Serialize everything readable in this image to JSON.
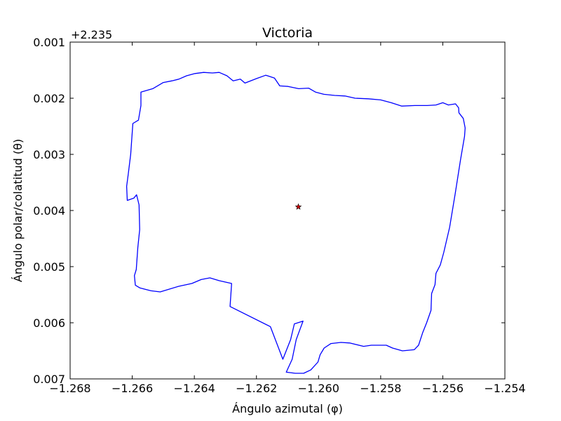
{
  "chart_data": {
    "type": "line",
    "title": "Victoria",
    "xlabel": "Ángulo azimutal (φ)",
    "ylabel": "Ángulo polar/colatitud (θ)",
    "y_offset_label": "+2.235",
    "xlim": [
      -1.268,
      -1.254
    ],
    "ylim": [
      0.001,
      0.007
    ],
    "y_inverted": true,
    "x_ticks": [
      "−1.268",
      "−1.266",
      "−1.264",
      "−1.262",
      "−1.260",
      "−1.258",
      "−1.256",
      "−1.254"
    ],
    "y_ticks": [
      "0.001",
      "0.002",
      "0.003",
      "0.004",
      "0.005",
      "0.006",
      "0.007"
    ],
    "grid": false,
    "series": [
      {
        "color": "#0000ff",
        "closed": true,
        "points": [
          [
            -1.26572,
            0.00189
          ],
          [
            -1.26534,
            0.00183
          ],
          [
            -1.265,
            0.00172
          ],
          [
            -1.26472,
            0.00169
          ],
          [
            -1.2645,
            0.00166
          ],
          [
            -1.26425,
            0.0016
          ],
          [
            -1.26398,
            0.00156
          ],
          [
            -1.2637,
            0.00154
          ],
          [
            -1.26342,
            0.00155
          ],
          [
            -1.2632,
            0.00154
          ],
          [
            -1.26295,
            0.0016
          ],
          [
            -1.26275,
            0.00169
          ],
          [
            -1.26252,
            0.00166
          ],
          [
            -1.26237,
            0.00173
          ],
          [
            -1.262,
            0.00165
          ],
          [
            -1.2617,
            0.00159
          ],
          [
            -1.26142,
            0.00164
          ],
          [
            -1.26125,
            0.00178
          ],
          [
            -1.26098,
            0.00179
          ],
          [
            -1.26064,
            0.00183
          ],
          [
            -1.26032,
            0.00182
          ],
          [
            -1.2601,
            0.00189
          ],
          [
            -1.25983,
            0.00193
          ],
          [
            -1.25948,
            0.00195
          ],
          [
            -1.25915,
            0.00196
          ],
          [
            -1.25882,
            0.002
          ],
          [
            -1.2584,
            0.00201
          ],
          [
            -1.258,
            0.00203
          ],
          [
            -1.25766,
            0.00208
          ],
          [
            -1.25732,
            0.00214
          ],
          [
            -1.2569,
            0.00213
          ],
          [
            -1.2565,
            0.00213
          ],
          [
            -1.25622,
            0.00212
          ],
          [
            -1.256,
            0.00208
          ],
          [
            -1.25582,
            0.00212
          ],
          [
            -1.25559,
            0.0021
          ],
          [
            -1.25549,
            0.00217
          ],
          [
            -1.25548,
            0.00226
          ],
          [
            -1.25534,
            0.00236
          ],
          [
            -1.25528,
            0.00253
          ],
          [
            -1.2553,
            0.00268
          ],
          [
            -1.25543,
            0.0031
          ],
          [
            -1.2556,
            0.0037
          ],
          [
            -1.25578,
            0.0043
          ],
          [
            -1.25597,
            0.00475
          ],
          [
            -1.25608,
            0.00497
          ],
          [
            -1.25622,
            0.00512
          ],
          [
            -1.25625,
            0.00532
          ],
          [
            -1.25636,
            0.00548
          ],
          [
            -1.25638,
            0.00578
          ],
          [
            -1.25652,
            0.006
          ],
          [
            -1.25665,
            0.00618
          ],
          [
            -1.25678,
            0.0064
          ],
          [
            -1.25692,
            0.00648
          ],
          [
            -1.2573,
            0.0065
          ],
          [
            -1.25762,
            0.00645
          ],
          [
            -1.25782,
            0.0064
          ],
          [
            -1.2583,
            0.0064
          ],
          [
            -1.25855,
            0.00642
          ],
          [
            -1.259,
            0.00636
          ],
          [
            -1.25928,
            0.00635
          ],
          [
            -1.2596,
            0.00637
          ],
          [
            -1.25982,
            0.00645
          ],
          [
            -1.25995,
            0.00657
          ],
          [
            -1.26002,
            0.0067
          ],
          [
            -1.26025,
            0.00684
          ],
          [
            -1.26048,
            0.0069
          ],
          [
            -1.26075,
            0.0069
          ],
          [
            -1.26104,
            0.00688
          ],
          [
            -1.26085,
            0.00665
          ],
          [
            -1.26072,
            0.0063
          ],
          [
            -1.26058,
            0.00609
          ],
          [
            -1.2605,
            0.00597
          ],
          [
            -1.26078,
            0.00602
          ],
          [
            -1.2609,
            0.0063
          ],
          [
            -1.26115,
            0.00665
          ],
          [
            -1.26155,
            0.00607
          ],
          [
            -1.26285,
            0.00571
          ],
          [
            -1.2628,
            0.0053
          ],
          [
            -1.2632,
            0.00525
          ],
          [
            -1.2635,
            0.0052
          ],
          [
            -1.26378,
            0.00523
          ],
          [
            -1.26408,
            0.0053
          ],
          [
            -1.2645,
            0.00535
          ],
          [
            -1.2651,
            0.00545
          ],
          [
            -1.2654,
            0.00543
          ],
          [
            -1.26575,
            0.00538
          ],
          [
            -1.2659,
            0.00533
          ],
          [
            -1.26593,
            0.00516
          ],
          [
            -1.26587,
            0.00505
          ],
          [
            -1.26582,
            0.00466
          ],
          [
            -1.26576,
            0.00434
          ],
          [
            -1.26578,
            0.0039
          ],
          [
            -1.26586,
            0.00372
          ],
          [
            -1.26595,
            0.00378
          ],
          [
            -1.26616,
            0.00382
          ],
          [
            -1.26618,
            0.00357
          ],
          [
            -1.26613,
            0.00336
          ],
          [
            -1.26605,
            0.003
          ],
          [
            -1.26598,
            0.00245
          ],
          [
            -1.2658,
            0.00239
          ],
          [
            -1.26572,
            0.00213
          ]
        ]
      }
    ],
    "markers": [
      {
        "x": -1.26065,
        "y": 0.003935,
        "symbol": "star",
        "color": "#cc0000"
      }
    ]
  }
}
